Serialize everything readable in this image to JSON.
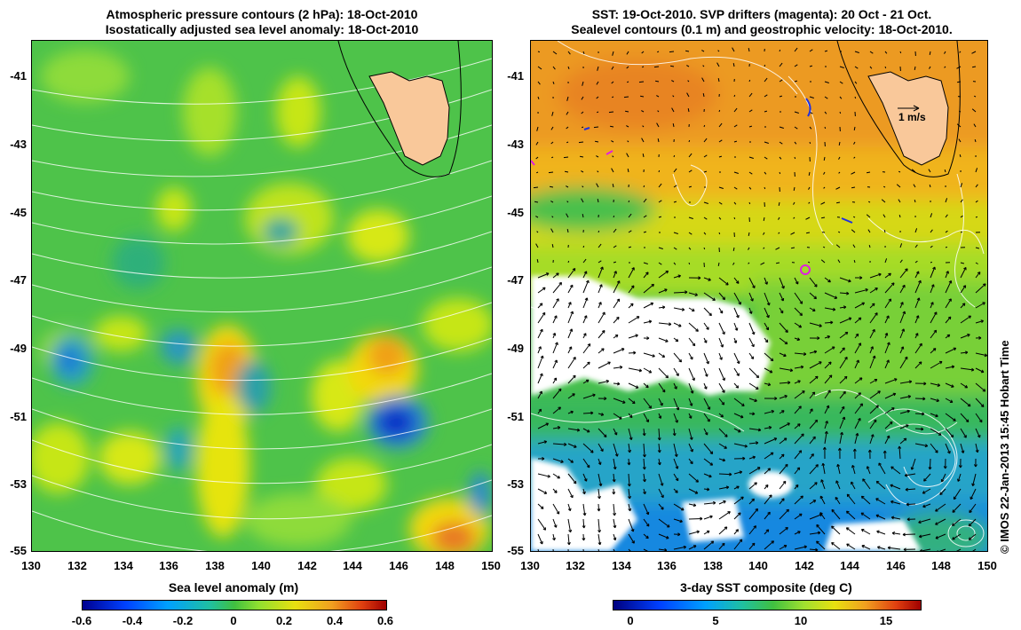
{
  "left_panel": {
    "title_line1": "Atmospheric pressure contours (2 hPa): 18-Oct-2010",
    "title_line2": "Isostatically adjusted sea level anomaly: 18-Oct-2010",
    "colorbar_label": "Sea level anomaly (m)",
    "colorbar_ticks": [
      "-0.6",
      "-0.4",
      "-0.2",
      "0",
      "0.2",
      "0.4",
      "0.6"
    ],
    "colorbar_range": [
      -0.6,
      0.6
    ]
  },
  "right_panel": {
    "title_line1": "SST: 19-Oct-2010. SVP drifters (magenta): 20 Oct - 21 Oct.",
    "title_line2": "Sealevel contours (0.1 m) and geostrophic velocity: 18-Oct-2010.",
    "colorbar_label": "3-day SST composite (deg C)",
    "colorbar_ticks": [
      "0",
      "5",
      "10",
      "15"
    ],
    "colorbar_range": [
      -1.5,
      16.5
    ],
    "scale_arrow_label": "1 m/s",
    "drifter_position": {
      "lon": 142.0,
      "lat": -46.75
    }
  },
  "axes": {
    "lon_range": [
      130,
      150
    ],
    "lat_range": [
      -55,
      -40
    ],
    "lon_ticks": [
      "130",
      "132",
      "134",
      "136",
      "138",
      "140",
      "142",
      "144",
      "146",
      "148",
      "150"
    ],
    "lat_ticks": [
      "-41",
      "-43",
      "-45",
      "-47",
      "-49",
      "-51",
      "-53",
      "-55"
    ]
  },
  "credit": "© IMOS 22-Jan-2013 15:45 Hobart Time",
  "colors": {
    "land": "#f9c89a",
    "contour": "#ffffff",
    "drifter": "#e020e0"
  }
}
